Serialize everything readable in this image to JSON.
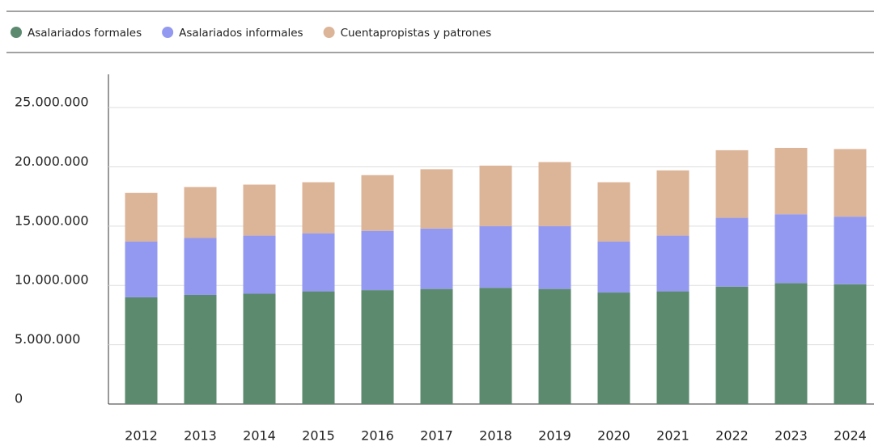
{
  "chart_data": {
    "type": "stacked_bar",
    "categories": [
      "2012",
      "2013",
      "2014",
      "2015",
      "2016",
      "2017",
      "2018",
      "2019",
      "2020",
      "2021",
      "2022",
      "2023",
      "2024"
    ],
    "series": [
      {
        "name": "Asalariados formales",
        "color": "#5c8a6e",
        "values": [
          9000000,
          9200000,
          9300000,
          9500000,
          9600000,
          9700000,
          9800000,
          9700000,
          9400000,
          9500000,
          9900000,
          10200000,
          10100000
        ]
      },
      {
        "name": "Asalariados informales",
        "color": "#9399f0",
        "values": [
          4700000,
          4800000,
          4900000,
          4900000,
          5000000,
          5100000,
          5200000,
          5300000,
          4300000,
          4700000,
          5800000,
          5800000,
          5700000
        ]
      },
      {
        "name": "Cuentapropistas y patrones",
        "color": "#dcb498",
        "values": [
          4100000,
          4300000,
          4300000,
          4300000,
          4700000,
          5000000,
          5100000,
          5400000,
          5000000,
          5500000,
          5700000,
          5600000,
          5700000
        ]
      }
    ],
    "ylim": [
      0,
      27800000
    ],
    "yticks": [
      0,
      {
        "value": 5000000,
        "label": "5.000.000"
      },
      {
        "value": 10000000,
        "label": "10.000.000"
      },
      {
        "value": 15000000,
        "label": "15.000.000"
      },
      {
        "value": 20000000,
        "label": "20.000.000"
      },
      {
        "value": 25000000,
        "label": "25.000.000"
      }
    ],
    "grid": true
  }
}
